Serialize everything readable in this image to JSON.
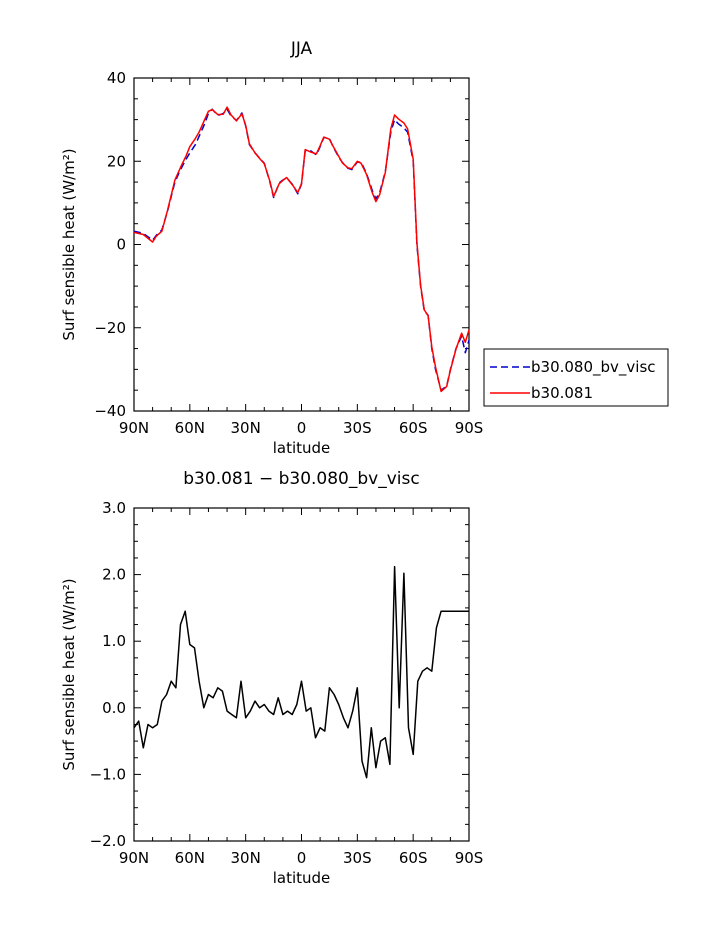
{
  "chart_data": [
    {
      "type": "line",
      "title": "JJA",
      "xlabel": "latitude",
      "ylabel": "Surf sensible heat (W/m²)",
      "xlim": [
        90,
        -90
      ],
      "ylim": [
        -40,
        40
      ],
      "x_ticks": [
        90,
        60,
        30,
        0,
        -30,
        -60,
        -90
      ],
      "x_tick_labels": [
        "90N",
        "60N",
        "30N",
        "0",
        "30S",
        "60S",
        "90S"
      ],
      "y_ticks": [
        -40,
        -20,
        0,
        20,
        40
      ],
      "y_tick_labels": [
        "−40",
        "−20",
        "0",
        "20",
        "40"
      ],
      "legend": "outside-right",
      "series": [
        {
          "name": "b30.080_bv_visc",
          "color": "#0000cc",
          "dash": "dashed",
          "x": [
            90,
            85,
            80,
            78,
            75,
            72,
            68,
            65,
            62,
            60,
            57,
            55,
            52,
            50,
            48,
            45,
            42,
            40,
            38,
            35,
            32,
            30,
            28,
            25,
            22,
            20,
            17,
            15,
            12,
            10,
            8,
            5,
            2,
            0,
            -2,
            -5,
            -8,
            -10,
            -12,
            -15,
            -17,
            -20,
            -22,
            -25,
            -27,
            -30,
            -32,
            -35,
            -38,
            -40,
            -42,
            -45,
            -48,
            -50,
            -52,
            -55,
            -57,
            -60,
            -62,
            -64,
            -66,
            -68,
            -70,
            -72,
            -75,
            -78,
            -80,
            -83,
            -86,
            -88,
            -90
          ],
          "y": [
            3.2,
            2.7,
            1.0,
            2.2,
            3.5,
            8,
            15,
            18,
            20.5,
            22,
            24,
            26,
            29,
            31.5,
            32.5,
            31,
            31.5,
            32.5,
            31,
            29.8,
            31.6,
            28.5,
            24,
            22,
            20.5,
            19.5,
            15,
            11.3,
            14.8,
            15.5,
            16,
            14.5,
            12.2,
            14.5,
            22.5,
            22.5,
            21.5,
            23.5,
            25.7,
            25.5,
            23.5,
            21,
            19.7,
            18.3,
            18,
            19.8,
            19.8,
            17,
            13,
            11,
            12.5,
            17.5,
            27,
            30,
            29,
            28,
            27,
            20,
            0,
            -10,
            -16,
            -17,
            -25,
            -30,
            -35,
            -34,
            -30,
            -25,
            -22,
            -26,
            -23
          ]
        },
        {
          "name": "b30.081",
          "color": "#ff0000",
          "dash": "solid",
          "x": [
            90,
            85,
            80,
            78,
            75,
            72,
            68,
            65,
            62,
            60,
            57,
            55,
            52,
            50,
            48,
            45,
            42,
            40,
            38,
            35,
            32,
            30,
            28,
            25,
            22,
            20,
            17,
            15,
            12,
            10,
            8,
            5,
            2,
            0,
            -2,
            -5,
            -8,
            -10,
            -12,
            -15,
            -17,
            -20,
            -22,
            -25,
            -27,
            -30,
            -32,
            -35,
            -38,
            -40,
            -42,
            -45,
            -48,
            -50,
            -52,
            -55,
            -57,
            -60,
            -62,
            -64,
            -66,
            -68,
            -70,
            -72,
            -75,
            -78,
            -80,
            -83,
            -86,
            -88,
            -90
          ],
          "y": [
            2.9,
            2.4,
            0.6,
            2.0,
            3.2,
            8.2,
            15.5,
            18.5,
            21.3,
            23.5,
            25.5,
            27,
            30,
            32,
            32.4,
            31.2,
            31.3,
            33,
            31.2,
            29.7,
            31.4,
            28.6,
            24.2,
            22,
            20.4,
            19.4,
            15.2,
            11.5,
            14.6,
            15.4,
            16.1,
            14.4,
            12.5,
            14.6,
            22.8,
            22.2,
            21.8,
            23.7,
            25.8,
            25.3,
            23.6,
            21.2,
            19.6,
            18.4,
            18.2,
            20,
            19.5,
            16.8,
            12.5,
            10.3,
            12,
            17.3,
            27.8,
            31.1,
            30.2,
            29.2,
            27.8,
            20.5,
            0.5,
            -9.8,
            -15.7,
            -17.1,
            -24.6,
            -29.4,
            -35.3,
            -34.1,
            -30.2,
            -25.1,
            -21.3,
            -23.5,
            -20.5
          ]
        }
      ]
    },
    {
      "type": "line",
      "title": "b30.081 − b30.080_bv_visc",
      "xlabel": "latitude",
      "ylabel": "Surf sensible heat (W/m²)",
      "xlim": [
        90,
        -90
      ],
      "ylim": [
        -2,
        3
      ],
      "x_ticks": [
        90,
        60,
        30,
        0,
        -30,
        -60,
        -90
      ],
      "x_tick_labels": [
        "90N",
        "60N",
        "30N",
        "0",
        "30S",
        "60S",
        "90S"
      ],
      "y_ticks": [
        -2,
        -1,
        0,
        1,
        2,
        3
      ],
      "y_tick_labels": [
        "−2.0",
        "−1.0",
        "0.0",
        "1.0",
        "2.0",
        "3.0"
      ],
      "series": [
        {
          "color": "#000000",
          "dash": "solid",
          "x": [
            90,
            87.5,
            85,
            82.5,
            80,
            77.5,
            75,
            72.5,
            70,
            67.5,
            65,
            62.5,
            60,
            57.5,
            55,
            52.5,
            50,
            47.5,
            45,
            42.5,
            40,
            37.5,
            35,
            32.5,
            30,
            27.5,
            25,
            22.5,
            20,
            17.5,
            15,
            12.5,
            10,
            7.5,
            5,
            2.5,
            0,
            -2.5,
            -5,
            -7.5,
            -10,
            -12.5,
            -15,
            -17.5,
            -20,
            -22.5,
            -25,
            -27.5,
            -30,
            -32.5,
            -35,
            -37.5,
            -40,
            -42.5,
            -45,
            -47.5,
            -50,
            -52.5,
            -55,
            -57.5,
            -60,
            -62.5,
            -65,
            -67.5,
            -70,
            -72.5,
            -75,
            -77.5,
            -80,
            -82.5,
            -85,
            -87.5,
            -90
          ],
          "y": [
            -0.3,
            -0.2,
            -0.6,
            -0.25,
            -0.3,
            -0.25,
            0.1,
            0.2,
            0.4,
            0.3,
            1.25,
            1.45,
            0.95,
            0.9,
            0.4,
            0.0,
            0.2,
            0.15,
            0.3,
            0.25,
            -0.05,
            -0.1,
            -0.15,
            0.4,
            -0.15,
            -0.05,
            0.1,
            0.0,
            0.05,
            -0.05,
            -0.1,
            0.15,
            -0.1,
            -0.05,
            -0.1,
            0.05,
            0.4,
            -0.05,
            0.0,
            -0.45,
            -0.3,
            -0.35,
            0.3,
            0.2,
            0.05,
            -0.15,
            -0.3,
            -0.05,
            0.3,
            -0.8,
            -1.05,
            -0.3,
            -0.9,
            -0.5,
            -0.45,
            -0.85,
            2.12,
            0.0,
            2.02,
            -0.3,
            -0.7,
            0.4,
            0.55,
            0.6,
            0.55,
            1.2,
            1.45,
            1.45,
            1.45,
            1.45,
            1.45,
            1.45,
            1.45
          ]
        }
      ]
    }
  ]
}
